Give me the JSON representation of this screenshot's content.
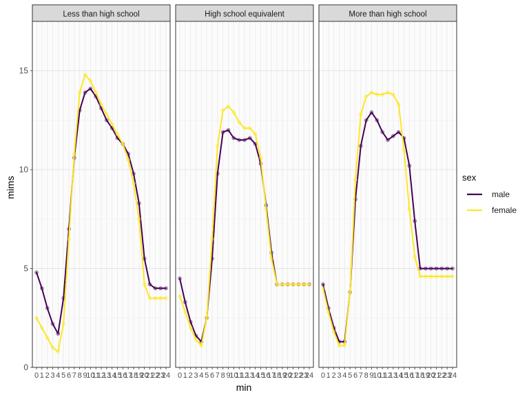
{
  "chart_data": {
    "type": "line",
    "xlabel": "min",
    "ylabel": "mims",
    "ylim": [
      0,
      17.5
    ],
    "xlim": [
      0,
      24
    ],
    "x_ticks": [
      0,
      1,
      2,
      3,
      4,
      5,
      6,
      7,
      8,
      9,
      10,
      11,
      12,
      13,
      14,
      15,
      16,
      17,
      18,
      19,
      20,
      21,
      22,
      23,
      24
    ],
    "y_ticks": [
      0,
      5,
      10,
      15
    ],
    "grid": true,
    "legend": {
      "title": "sex",
      "position": "right",
      "entries": [
        "male",
        "female"
      ]
    },
    "series_colors": {
      "male": "#440154",
      "female": "#FDE725"
    },
    "x": [
      0,
      1,
      2,
      3,
      4,
      5,
      6,
      7,
      8,
      9,
      10,
      11,
      12,
      13,
      14,
      15,
      16,
      17,
      18,
      19,
      20,
      21,
      22,
      23,
      24
    ],
    "facets": [
      {
        "label": "Less than high school",
        "series": [
          {
            "name": "male",
            "values": [
              4.8,
              4.0,
              3.0,
              2.2,
              1.7,
              3.5,
              7.0,
              10.6,
              13.0,
              13.9,
              14.1,
              13.7,
              13.1,
              12.5,
              12.1,
              11.6,
              11.3,
              10.8,
              9.8,
              8.3,
              5.5,
              4.2,
              4.0,
              4.0,
              4.0
            ]
          },
          {
            "name": "female",
            "values": [
              2.5,
              2.0,
              1.5,
              1.0,
              0.8,
              2.2,
              6.5,
              10.8,
              13.9,
              14.8,
              14.5,
              13.9,
              13.3,
              12.8,
              12.3,
              11.8,
              11.3,
              10.5,
              9.3,
              7.5,
              4.2,
              3.5,
              3.5,
              3.5,
              3.5
            ]
          }
        ]
      },
      {
        "label": "High school equivalent",
        "series": [
          {
            "name": "male",
            "values": [
              4.5,
              3.3,
              2.3,
              1.6,
              1.3,
              2.5,
              5.5,
              9.8,
              11.9,
              12.0,
              11.6,
              11.5,
              11.5,
              11.6,
              11.3,
              10.3,
              8.2,
              5.8,
              4.2,
              4.2,
              4.2,
              4.2,
              4.2,
              4.2,
              4.2
            ]
          },
          {
            "name": "female",
            "values": [
              3.6,
              2.8,
              2.0,
              1.4,
              1.1,
              2.5,
              6.5,
              11.2,
              13.0,
              13.2,
              12.9,
              12.4,
              12.1,
              12.1,
              11.8,
              10.6,
              8.0,
              5.5,
              4.2,
              4.2,
              4.2,
              4.2,
              4.2,
              4.2,
              4.2
            ]
          }
        ]
      },
      {
        "label": "More than high school",
        "series": [
          {
            "name": "male",
            "values": [
              4.2,
              3.0,
              2.0,
              1.3,
              1.3,
              3.8,
              8.5,
              11.2,
              12.5,
              12.9,
              12.5,
              11.9,
              11.5,
              11.7,
              11.9,
              11.6,
              10.2,
              7.4,
              5.0,
              5.0,
              5.0,
              5.0,
              5.0,
              5.0,
              5.0
            ]
          },
          {
            "name": "female",
            "values": [
              4.0,
              2.8,
              1.8,
              1.1,
              1.1,
              3.8,
              9.5,
              12.8,
              13.7,
              13.9,
              13.8,
              13.8,
              13.9,
              13.8,
              13.3,
              11.0,
              8.0,
              5.6,
              4.6,
              4.6,
              4.6,
              4.6,
              4.6,
              4.6,
              4.6
            ]
          }
        ]
      }
    ]
  }
}
